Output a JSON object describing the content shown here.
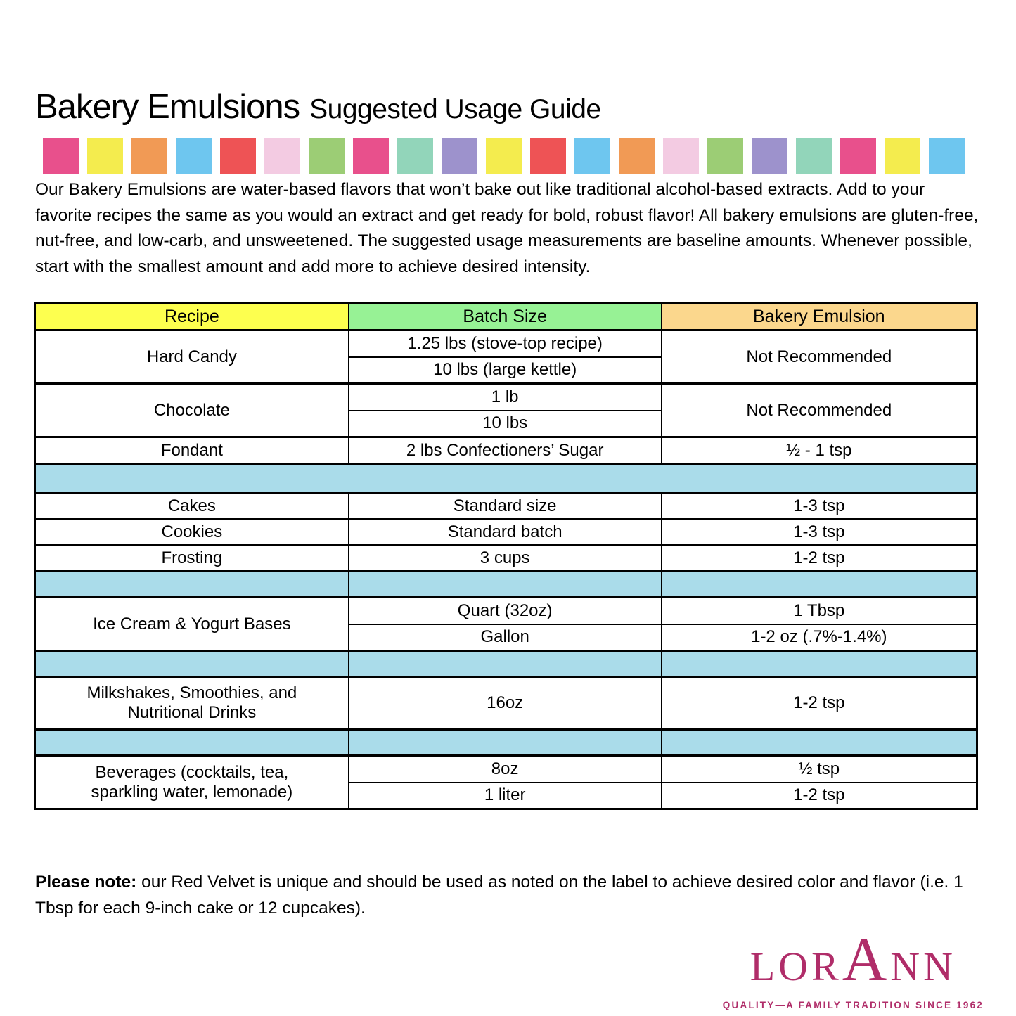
{
  "header": {
    "title_main": "Bakery Emulsions",
    "title_sub": "Suggested Usage Guide"
  },
  "color_strip": {
    "colors": [
      "#e8508c",
      "#f4ec4e",
      "#f19a55",
      "#6ec6ef",
      "#ee5355",
      "#f3cbe2",
      "#9ccd75",
      "#e8508c",
      "#92d5ba",
      "#9d92cc",
      "#f4ec4e",
      "#ee5355",
      "#6ec6ef",
      "#f19a55",
      "#f3cbe2",
      "#9ccd75",
      "#9d92cc",
      "#92d5ba",
      "#e8508c",
      "#f4ec4e",
      "#6ec6ef"
    ]
  },
  "intro": {
    "text": "Our Bakery Emulsions are water-based flavors that won’t bake out like traditional alcohol-based extracts. Add to your favorite recipes the same as you would an extract and get ready for bold, robust flavor! All bakery emulsions are gluten-free, nut-free, and low-carb, and unsweetened. The suggested usage measurements are baseline amounts. Whenever possible, start with the smallest amount and add more to achieve desired intensity."
  },
  "table": {
    "spacer_color": "#aadcea",
    "headers": {
      "recipe": {
        "label": "Recipe",
        "bg": "#fdff4f"
      },
      "batch": {
        "label": "Batch Size",
        "bg": "#97f295"
      },
      "emulsion": {
        "label": "Bakery Emulsion",
        "bg": "#fbd78d"
      }
    },
    "hard_candy": {
      "recipe": "Hard Candy",
      "batch_1": "1.25 lbs (stove-top recipe)",
      "batch_2": "10 lbs (large kettle)",
      "emulsion": "Not Recommended"
    },
    "chocolate": {
      "recipe": "Chocolate",
      "batch_1": "1 lb",
      "batch_2": "10 lbs",
      "emulsion": "Not Recommended"
    },
    "fondant": {
      "recipe": "Fondant",
      "batch": "2 lbs Confectioners’ Sugar",
      "emulsion": "½ - 1 tsp"
    },
    "cakes": {
      "recipe": "Cakes",
      "batch": "Standard size",
      "emulsion": "1-3 tsp"
    },
    "cookies": {
      "recipe": "Cookies",
      "batch": "Standard batch",
      "emulsion": "1-3 tsp"
    },
    "frosting": {
      "recipe": "Frosting",
      "batch": "3 cups",
      "emulsion": "1-2 tsp"
    },
    "ice_cream": {
      "recipe": "Ice Cream & Yogurt Bases",
      "batch_1": "Quart (32oz)",
      "emulsion_1": "1 Tbsp",
      "batch_2": "Gallon",
      "emulsion_2": "1-2 oz (.7%-1.4%)"
    },
    "milkshakes": {
      "recipe": "Milkshakes, Smoothies, and\nNutritional Drinks",
      "batch": "16oz",
      "emulsion": "1-2 tsp"
    },
    "beverages": {
      "recipe": "Beverages (cocktails, tea,\nsparkling water, lemonade)",
      "batch_1": "8oz",
      "emulsion_1": "½ tsp",
      "batch_2": "1 liter",
      "emulsion_2": "1-2 tsp"
    }
  },
  "note": {
    "bold": "Please note:",
    "text": " our Red Velvet is unique and should be used as noted on the label to achieve desired color and flavor (i.e. 1 Tbsp for each 9-inch cake or 12 cupcakes)."
  },
  "logo": {
    "part1": "LOR",
    "part2": "A",
    "part3": "NN",
    "tagline": "QUALITY—A FAMILY TRADITION SINCE 1962",
    "color": "#b02d69"
  }
}
